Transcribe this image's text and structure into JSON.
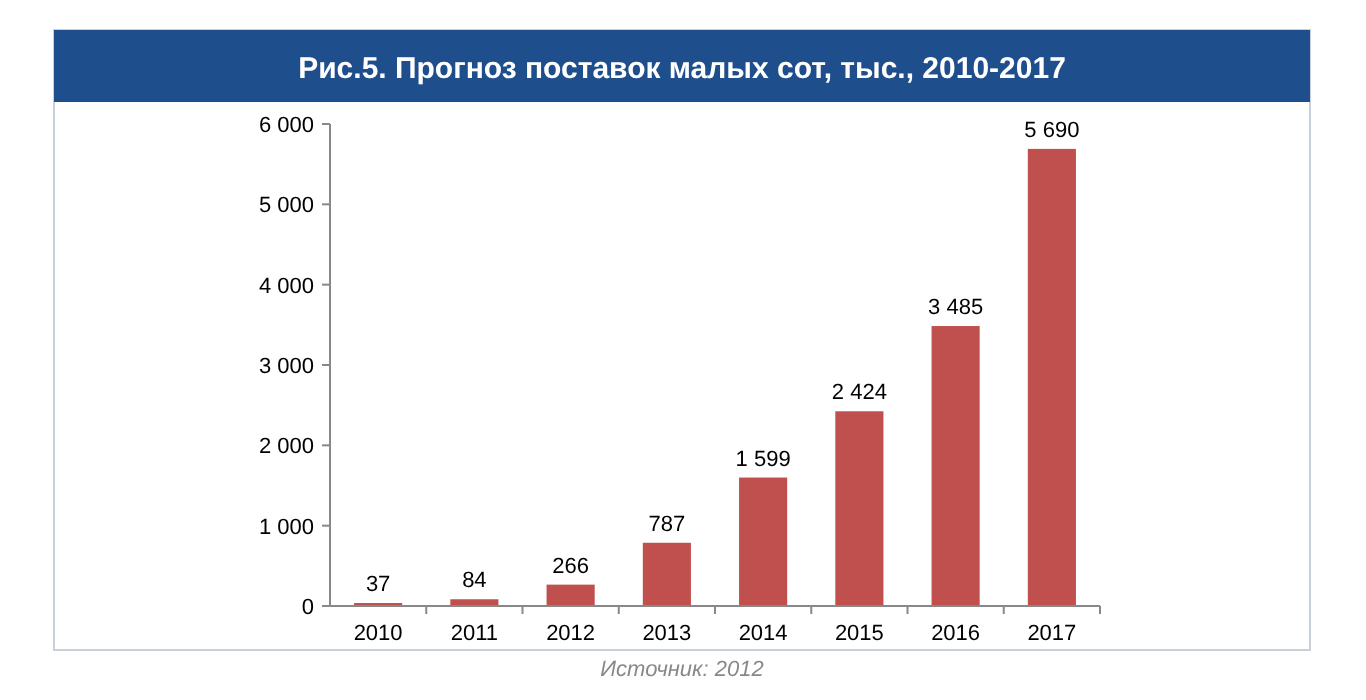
{
  "chart_data": {
    "type": "bar",
    "title": "Рис.5. Прогноз поставок малых сот, тыс., 2010-2017",
    "categories": [
      "2010",
      "2011",
      "2012",
      "2013",
      "2014",
      "2015",
      "2016",
      "2017"
    ],
    "values": [
      37,
      84,
      266,
      787,
      1599,
      2424,
      3485,
      5690
    ],
    "value_labels": [
      "37",
      "84",
      "266",
      "787",
      "1 599",
      "2 424",
      "3 485",
      "5 690"
    ],
    "color": "#c0504d",
    "ylim": [
      0,
      6000
    ],
    "yticks": [
      0,
      {
        "value": 1000,
        "label": "1 000"
      },
      {
        "value": 2000,
        "label": "2 000"
      },
      {
        "value": 3000,
        "label": "3 000"
      },
      {
        "value": 4000,
        "label": "4 000"
      },
      {
        "value": 5000,
        "label": "5 000"
      },
      {
        "value": 6000,
        "label": "6 000"
      }
    ],
    "annotations": [
      "Источник: 2012"
    ],
    "grid": false
  }
}
